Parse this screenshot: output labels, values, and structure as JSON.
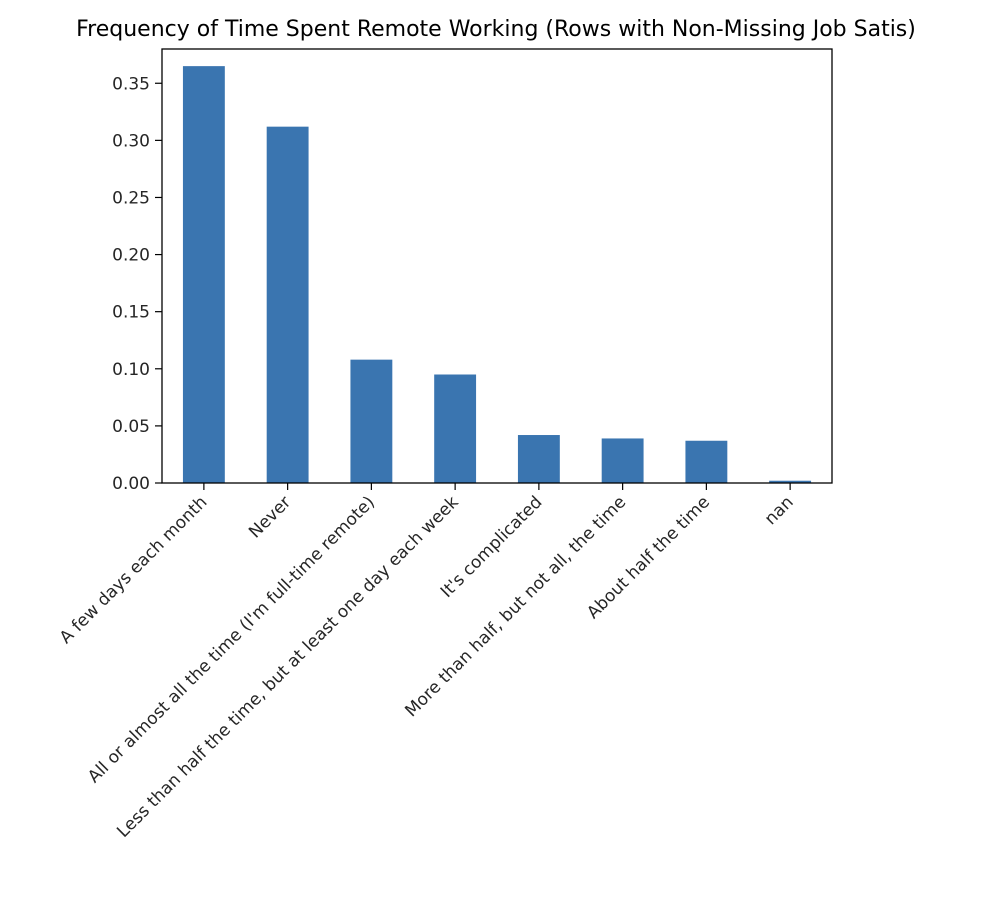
{
  "chart_data": {
    "type": "bar",
    "title": "Frequency of Time Spent Remote Working (Rows with Non-Missing Job Satis)",
    "xlabel": "",
    "ylabel": "",
    "categories": [
      "A few days each month",
      "Never",
      "All or almost all the time (I'm full-time remote)",
      "Less than half the time, but at least one day each week",
      "It's complicated",
      "More than half, but not all, the time",
      "About half the time",
      "nan"
    ],
    "values": [
      0.365,
      0.312,
      0.108,
      0.095,
      0.042,
      0.039,
      0.037,
      0.002
    ],
    "ylim": [
      0,
      0.38
    ],
    "yticks": [
      0.0,
      0.05,
      0.1,
      0.15,
      0.2,
      0.25,
      0.3,
      0.35
    ],
    "ytick_labels": [
      "0.00",
      "0.05",
      "0.10",
      "0.15",
      "0.20",
      "0.25",
      "0.30",
      "0.35"
    ],
    "bar_color": "#3a75b0",
    "grid": false,
    "legend": "none"
  }
}
